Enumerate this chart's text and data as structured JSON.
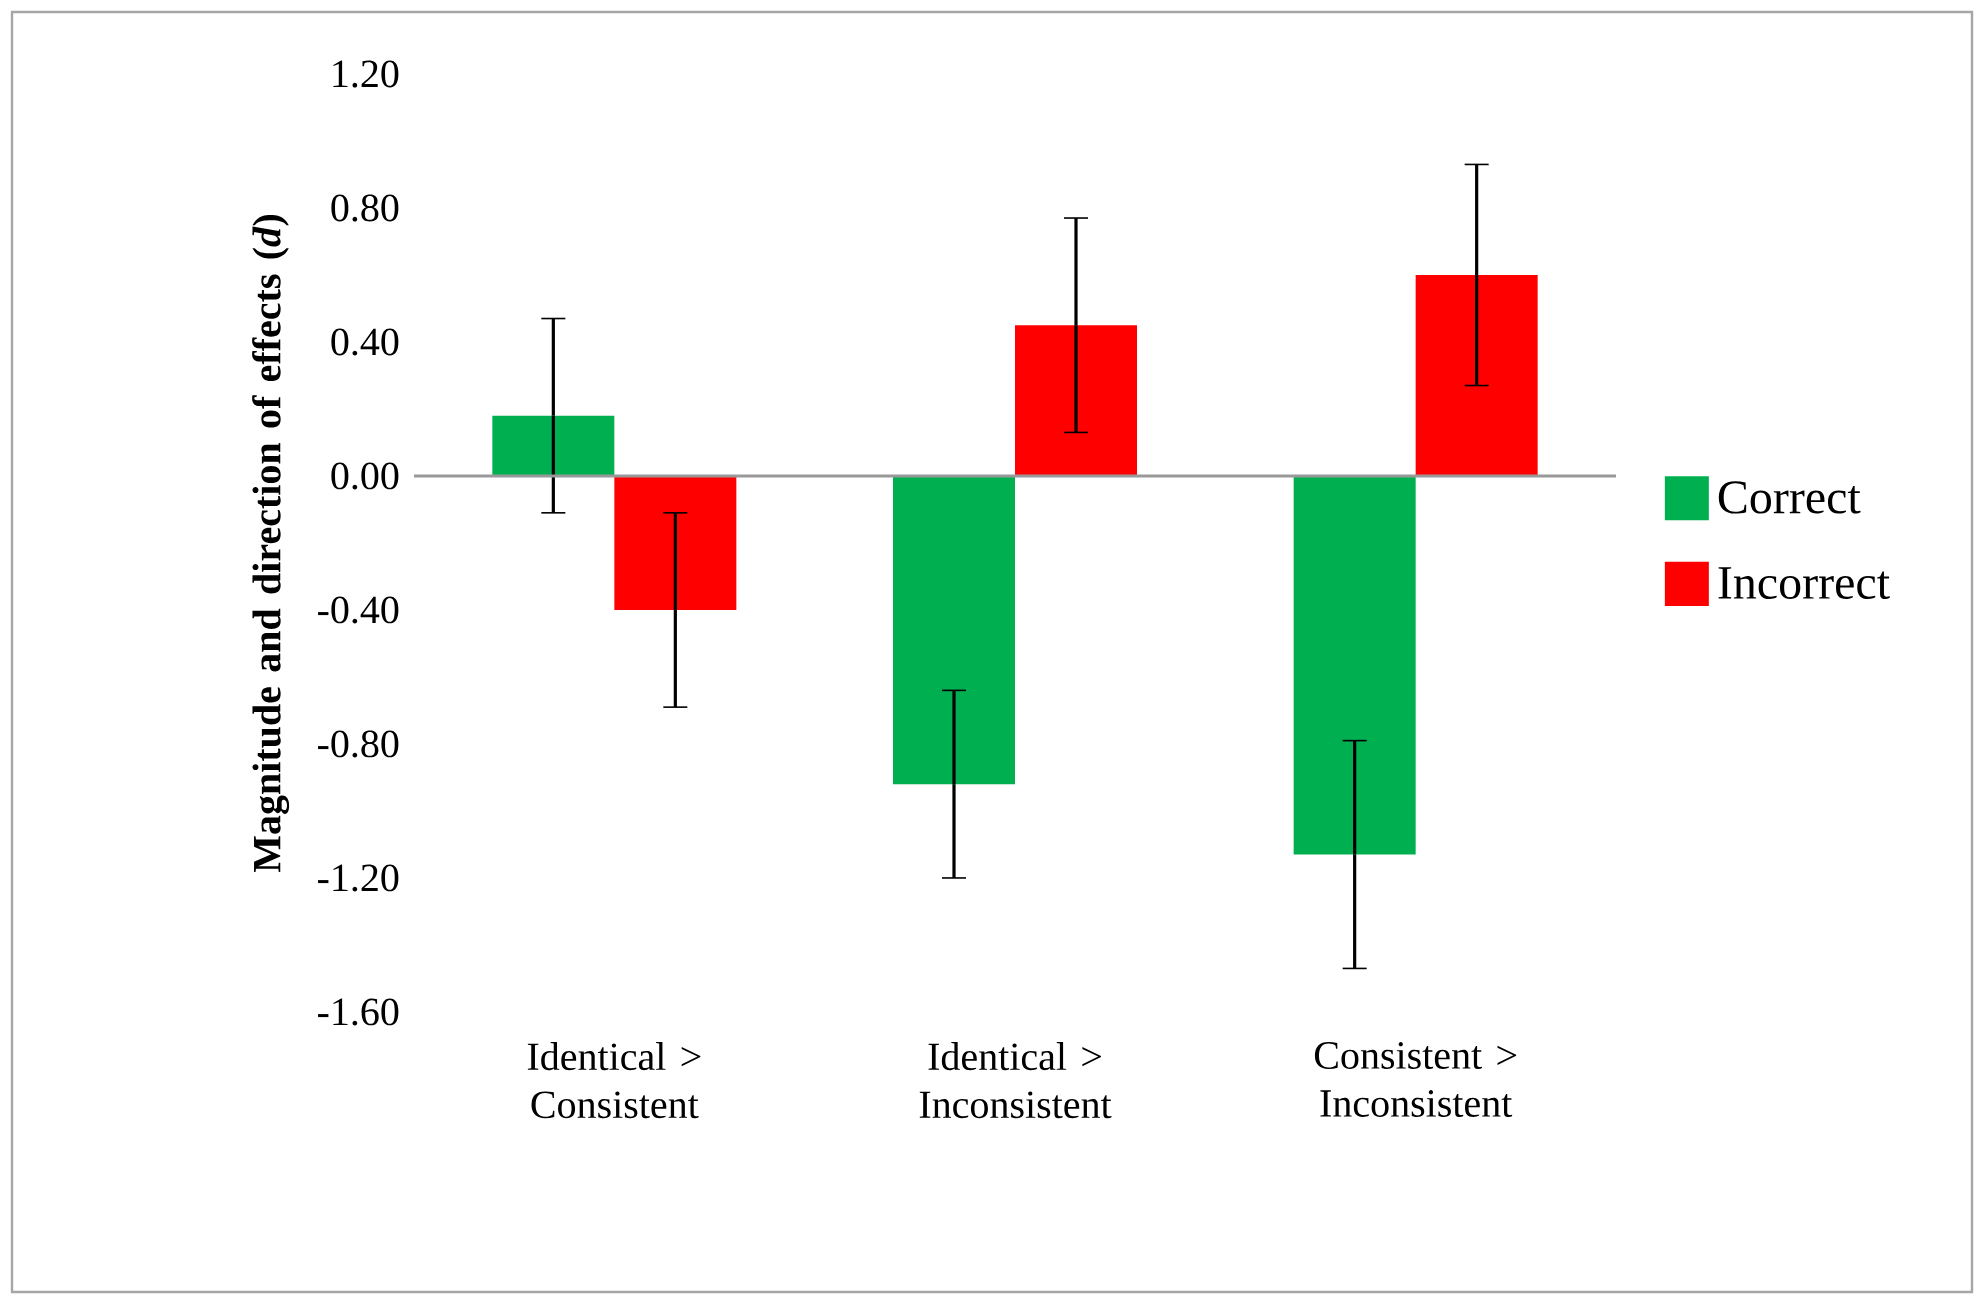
{
  "chart_data": {
    "type": "bar",
    "ylabel": "Magnitude and direction of effects (*d*)",
    "categories": [
      "Identical > Consistent",
      "Identical > Inconsistent",
      "Consistent > Inconsistent"
    ],
    "series": [
      {
        "name": "Correct",
        "color": "#00b050",
        "values": [
          0.18,
          -0.92,
          -1.13
        ],
        "errors": [
          0.29,
          0.28,
          0.34
        ]
      },
      {
        "name": "Incorrect",
        "color": "#ff0000",
        "values": [
          -0.4,
          0.45,
          0.6
        ],
        "errors": [
          0.29,
          0.32,
          0.33
        ]
      }
    ],
    "ylim": [
      -1.6,
      1.2
    ],
    "yticks": [
      {
        "value": -1.6,
        "label": "-1.60"
      },
      {
        "value": -1.2,
        "label": "-1.20"
      },
      {
        "value": -0.8,
        "label": "-0.80"
      },
      {
        "value": -0.4,
        "label": "-0.40"
      },
      {
        "value": 0,
        "label": "0.00"
      },
      {
        "value": 0.4,
        "label": "0.40"
      },
      {
        "value": 0.8,
        "label": "0.80"
      },
      {
        "value": 1.2,
        "label": "1.20"
      }
    ],
    "legend": "right"
  }
}
